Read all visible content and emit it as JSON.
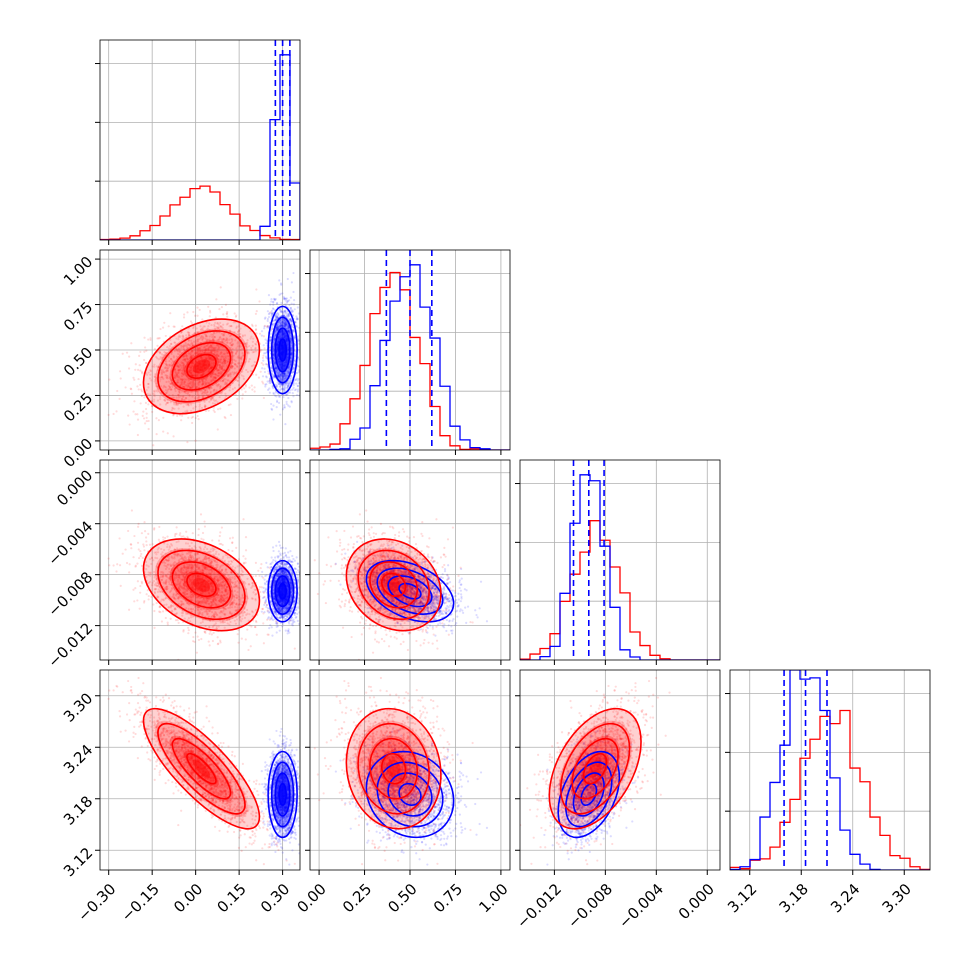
{
  "chart_data": {
    "type": "corner",
    "title": "",
    "parameters": [
      "",
      "",
      "",
      ""
    ],
    "colors": {
      "a": "#ff0000",
      "b": "#0000ff",
      "grid": "#b0b0b0"
    },
    "grid": true,
    "legend": "none",
    "axes": [
      {
        "range": [
          -0.33,
          0.36
        ],
        "ticks": [
          -0.3,
          -0.15,
          0.0,
          0.15,
          0.3
        ],
        "tick_labels": [
          "−0.30",
          "−0.15",
          "0.00",
          "0.15",
          "0.30"
        ]
      },
      {
        "range": [
          -0.05,
          1.05
        ],
        "ticks": [
          0.0,
          0.25,
          0.5,
          0.75,
          1.0
        ],
        "tick_labels": [
          "0.00",
          "0.25",
          "0.50",
          "0.75",
          "1.00"
        ]
      },
      {
        "range": [
          -0.0147,
          0.001
        ],
        "ticks": [
          -0.012,
          -0.008,
          -0.004,
          0.0
        ],
        "tick_labels": [
          "−0.012",
          "−0.008",
          "−0.004",
          "0.000"
        ]
      },
      {
        "range": [
          3.097,
          3.33
        ],
        "ticks": [
          3.12,
          3.18,
          3.24,
          3.3
        ],
        "tick_labels": [
          "3.12",
          "3.18",
          "3.24",
          "3.30"
        ]
      }
    ],
    "series": [
      {
        "key": "a",
        "means": [
          0.02,
          0.41,
          -0.0088,
          3.215
        ],
        "sds": [
          0.1,
          0.13,
          0.0018,
          0.035
        ],
        "corr": [
          [
            1,
            0.35,
            -0.35,
            -0.8
          ],
          [
            0.35,
            1,
            -0.2,
            -0.1
          ],
          [
            -0.35,
            -0.2,
            1,
            0.45
          ],
          [
            -0.8,
            -0.1,
            0.45,
            1
          ]
        ]
      },
      {
        "key": "b",
        "means": [
          0.3,
          0.5,
          -0.0093,
          3.185
        ],
        "sds": [
          0.025,
          0.12,
          0.0012,
          0.025
        ],
        "corr": [
          [
            1,
            0,
            0,
            0
          ],
          [
            0,
            1,
            -0.4,
            -0.15
          ],
          [
            0,
            -0.4,
            1,
            0.4
          ],
          [
            0,
            -0.15,
            0.4,
            1
          ]
        ]
      }
    ],
    "quantile_lines_b": [
      [
        0.275,
        0.3,
        0.325
      ],
      [
        0.37,
        0.5,
        0.62
      ],
      [
        -0.0105,
        -0.0093,
        -0.0081
      ],
      [
        3.16,
        3.185,
        3.21
      ]
    ]
  }
}
